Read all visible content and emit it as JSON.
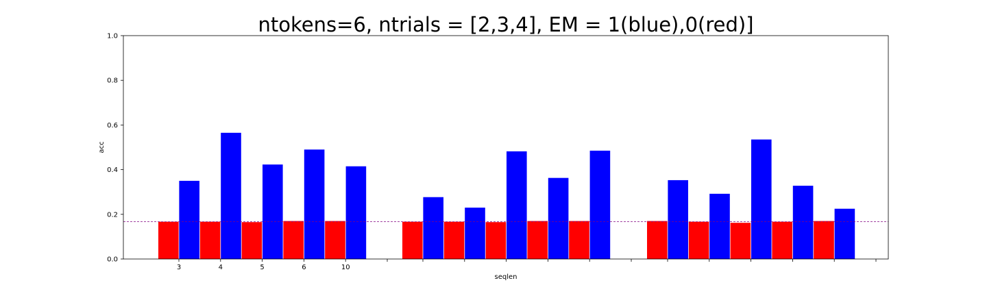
{
  "chart_data": {
    "type": "bar",
    "title": "ntokens=6, ntrials = [2,3,4], EM = 1(blue),0(red)]",
    "xlabel": "seqlen",
    "ylabel": "acc",
    "ylim": [
      0,
      1.0
    ],
    "yticks": [
      "0.0",
      "0.2",
      "0.4",
      "0.6",
      "0.8",
      "1.0"
    ],
    "xtick_labels": [
      "3",
      "4",
      "5",
      "6",
      "10"
    ],
    "grid": false,
    "chance_line": {
      "value": 0.1667,
      "color": "#800080",
      "style": "dashed"
    },
    "colors": {
      "em0": "#ff0000",
      "em1": "#0000ff"
    },
    "groups": [
      {
        "ntrials": 2,
        "em0": [
          0.167,
          0.167,
          0.165,
          0.17,
          0.17
        ],
        "em1": [
          0.35,
          0.565,
          0.423,
          0.49,
          0.415
        ]
      },
      {
        "ntrials": 3,
        "em0": [
          0.167,
          0.167,
          0.165,
          0.17,
          0.17
        ],
        "em1": [
          0.277,
          0.23,
          0.482,
          0.363,
          0.485
        ]
      },
      {
        "ntrials": 4,
        "em0": [
          0.17,
          0.167,
          0.162,
          0.167,
          0.17
        ],
        "em1": [
          0.353,
          0.292,
          0.535,
          0.328,
          0.225
        ]
      }
    ]
  }
}
